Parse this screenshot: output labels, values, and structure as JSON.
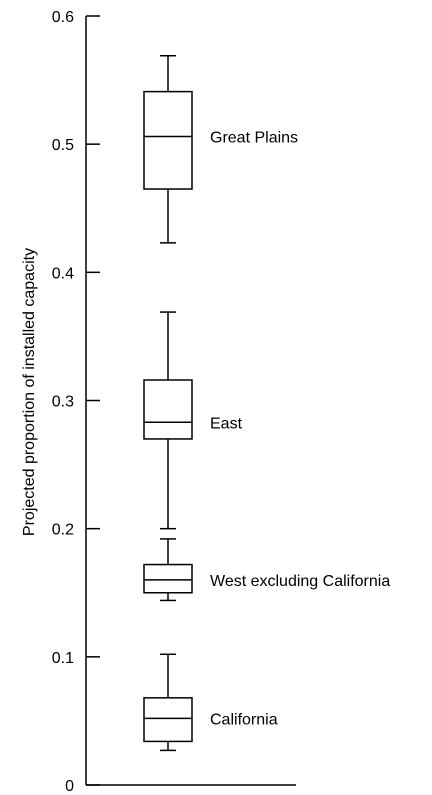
{
  "chart_data": {
    "type": "box",
    "ylabel": "Projected proportion of installed capacity",
    "xlabel": "",
    "ylim": [
      0,
      0.6
    ],
    "yticks": [
      {
        "value": 0,
        "label": "0"
      },
      {
        "value": 0.1,
        "label": "0.1"
      },
      {
        "value": 0.2,
        "label": "0.2"
      },
      {
        "value": 0.3,
        "label": "0.3"
      },
      {
        "value": 0.4,
        "label": "0.4"
      },
      {
        "value": 0.5,
        "label": "0.5"
      },
      {
        "value": 0.6,
        "label": "0.6"
      }
    ],
    "grid": false,
    "series": [
      {
        "name": "Great Plains",
        "min": 0.423,
        "q1": 0.465,
        "median": 0.506,
        "q3": 0.541,
        "max": 0.569
      },
      {
        "name": "East",
        "min": 0.2,
        "q1": 0.27,
        "median": 0.283,
        "q3": 0.316,
        "max": 0.369
      },
      {
        "name": "West excluding California",
        "min": 0.144,
        "q1": 0.15,
        "median": 0.16,
        "q3": 0.172,
        "max": 0.192
      },
      {
        "name": "California",
        "min": 0.027,
        "q1": 0.034,
        "median": 0.052,
        "q3": 0.068,
        "max": 0.102
      }
    ]
  }
}
